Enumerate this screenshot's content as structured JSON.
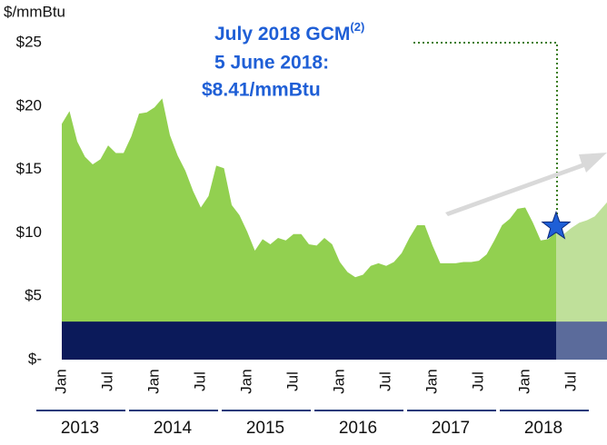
{
  "chart_data": {
    "type": "area",
    "y_axis_label": "$/mmBtu",
    "annotation": {
      "lines": [
        "July 2018 GCM",
        "5 June 2018:",
        "$8.41/mmBtu"
      ],
      "superscript": "(2)"
    },
    "categories": [
      "Jan",
      null,
      null,
      null,
      null,
      null,
      "Jul",
      null,
      null,
      null,
      null,
      null,
      "Jan",
      null,
      null,
      null,
      null,
      null,
      "Jul",
      null,
      null,
      null,
      null,
      null,
      "Jan",
      null,
      null,
      null,
      null,
      null,
      "Jul",
      null,
      null,
      null,
      null,
      null,
      "Jan",
      null,
      null,
      null,
      null,
      null,
      "Jul",
      null,
      null,
      null,
      null,
      null,
      "Jan",
      null,
      null,
      null,
      null,
      null,
      "Jul",
      null,
      null,
      null,
      null,
      null,
      "Jan",
      null,
      null,
      null,
      null,
      null,
      "Jul",
      null,
      null,
      null,
      null,
      null
    ],
    "years": [
      "2013",
      "2014",
      "2015",
      "2016",
      "2017",
      "2018"
    ],
    "series": [
      {
        "color": "#92d050",
        "values": [
          18.6,
          19.6,
          17.2,
          16,
          15.4,
          15.8,
          16.9,
          16.3,
          16.3,
          17.6,
          19.4,
          19.5,
          19.9,
          20.6,
          17.7,
          16.1,
          14.9,
          13.3,
          12,
          12.9,
          15.3,
          15.1,
          12.2,
          11.4,
          10.1,
          8.6,
          9.5,
          9.1,
          9.6,
          9.4,
          9.9,
          9.9,
          9.1,
          9,
          9.6,
          9.1,
          7.7,
          6.9,
          6.5,
          6.7,
          7.4,
          7.6,
          7.4,
          7.7,
          8.4,
          9.6,
          10.6,
          10.6,
          9,
          7.6,
          7.6,
          7.6,
          7.7,
          7.7,
          7.8,
          8.3,
          9.4,
          10.6,
          11.1,
          11.9,
          12,
          10.8,
          9.4,
          9.5,
          10.1,
          null,
          null,
          null,
          null,
          null,
          null,
          null
        ]
      },
      {
        "color": "#bfe09a",
        "values": [
          null,
          null,
          null,
          null,
          null,
          null,
          null,
          null,
          null,
          null,
          null,
          null,
          null,
          null,
          null,
          null,
          null,
          null,
          null,
          null,
          null,
          null,
          null,
          null,
          null,
          null,
          null,
          null,
          null,
          null,
          null,
          null,
          null,
          null,
          null,
          null,
          null,
          null,
          null,
          null,
          null,
          null,
          null,
          null,
          null,
          null,
          null,
          null,
          null,
          null,
          null,
          null,
          null,
          null,
          null,
          null,
          null,
          null,
          null,
          null,
          null,
          null,
          null,
          null,
          10.1,
          9.9,
          10.4,
          10.8,
          11,
          11.3,
          12,
          12.7
        ]
      }
    ],
    "band": {
      "value": 3,
      "color": "#0b1a5a",
      "forward_color": "#5b6b9b"
    },
    "marker": {
      "index": 64,
      "value": 10.5,
      "color": "#1f5fd6"
    },
    "ylim": [
      0,
      25
    ],
    "yticks": [
      {
        "value": 0,
        "label": "$-"
      },
      {
        "value": 5,
        "label": "$5"
      },
      {
        "value": 10,
        "label": "$10"
      },
      {
        "value": 15,
        "label": "$15"
      },
      {
        "value": 20,
        "label": "$20"
      },
      {
        "value": 25,
        "label": "$25"
      }
    ]
  }
}
